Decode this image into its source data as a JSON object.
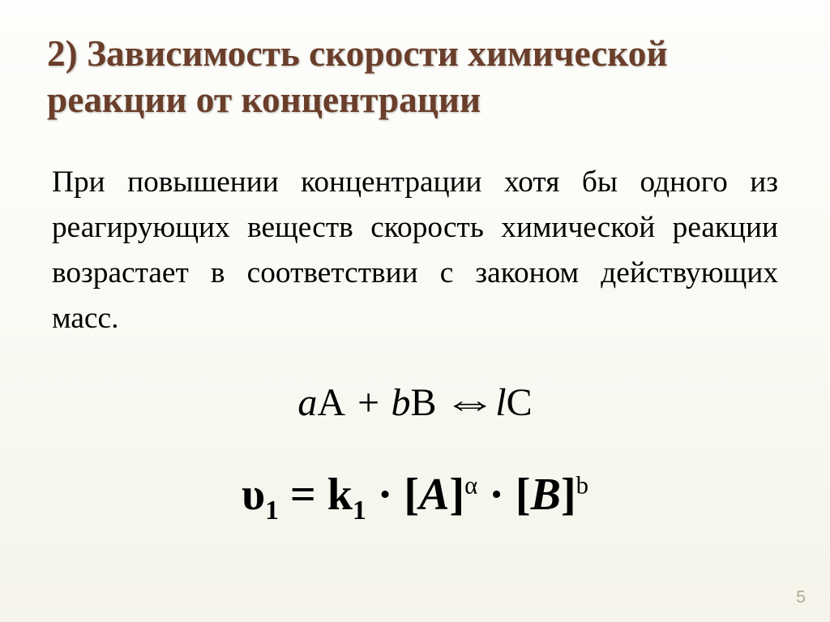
{
  "title": {
    "line1": "2) Зависимость скорости химической",
    "line2": "реакции от концентрации",
    "color": "#6a3e2a",
    "fontsize_pt": 34
  },
  "body": {
    "text": "При повышении концентрации хотя бы одного из реагирующих веществ скорость химической реакции возрастает в соответствии с законом действующих масс.",
    "color": "#000000",
    "fontsize_pt": 28
  },
  "equations": {
    "eq1": {
      "lhs_coeff_a": "a",
      "lhs_A": "A",
      "plus": " + ",
      "lhs_coeff_b": "b",
      "lhs_B": "B",
      "arrow": "⇔",
      "rhs_coeff_l": "l",
      "rhs_C": "C",
      "fontsize_pt": 36,
      "color": "#000000"
    },
    "eq2": {
      "upsilon": "υ",
      "sub1": "1",
      "equals": " = ",
      "k": "k",
      "k_sub": "1",
      "dot": " · ",
      "bracket_A": "[",
      "A": "A",
      "bracket_A_close": "]",
      "exp_alpha": "α",
      "bracket_B": "[",
      "B": "B",
      "bracket_B_close": "]",
      "exp_b": "b",
      "fontsize_pt": 42,
      "color": "#000000"
    }
  },
  "slide_number": "5",
  "slide_number_fontsize_pt": 16,
  "background_top": "#fdfdfb",
  "background_bottom": "#f5f4ea"
}
